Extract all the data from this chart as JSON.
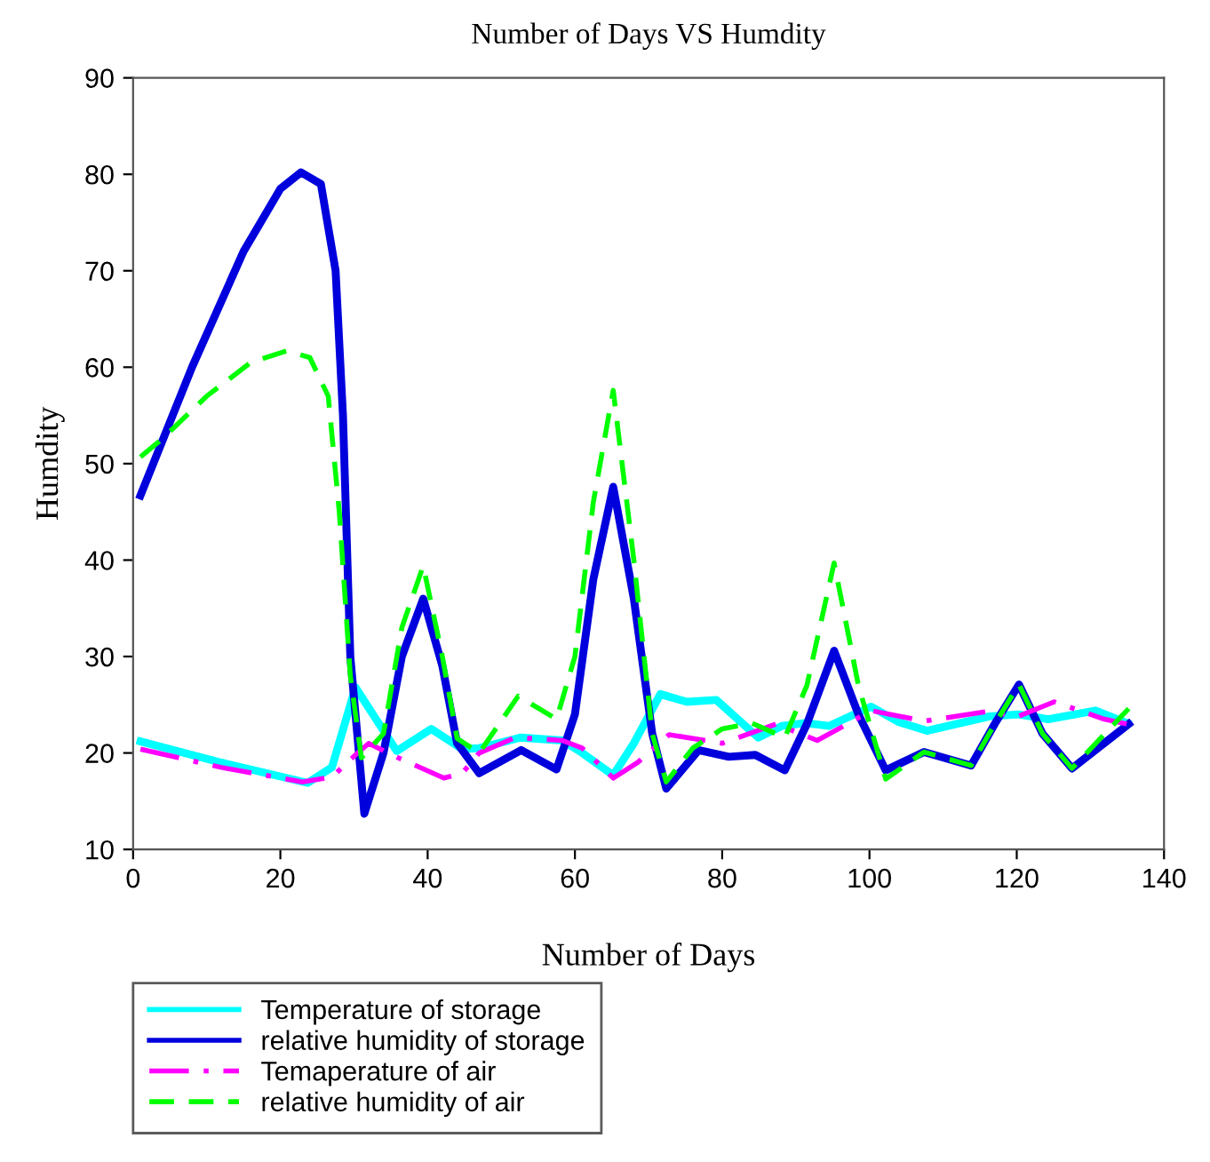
{
  "chart_data": {
    "type": "line",
    "title": "Number of Days VS Humdity",
    "xlabel": "Number of Days",
    "ylabel": "Humdity",
    "xlim": [
      0,
      140
    ],
    "xticks": [
      0,
      20,
      40,
      60,
      80,
      100,
      120,
      140
    ],
    "ylim": [
      10,
      90
    ],
    "yticks": [
      10,
      20,
      30,
      40,
      50,
      60,
      70,
      80,
      90
    ],
    "grid": false,
    "legend": "bottom left",
    "marker": "none",
    "series": [
      {
        "name": "Temperature of storage",
        "color": "#00ffff",
        "line_style": "solid",
        "x": [
          1,
          12,
          23.7,
          27,
          30.2,
          33,
          35.8,
          40.5,
          44.7,
          47,
          52.6,
          58.3,
          61,
          65.2,
          68,
          71.6,
          75.2,
          79.2,
          84.9,
          88.1,
          91.3,
          94.5,
          100.2,
          104,
          107.8,
          116.3,
          120.2,
          124.3,
          130.7,
          135
        ],
        "values": [
          21.2,
          19,
          16.9,
          18.5,
          26.8,
          23.5,
          20.2,
          22.5,
          20.4,
          20.5,
          21.6,
          21.3,
          20,
          17.7,
          21,
          26.1,
          25.3,
          25.5,
          21.6,
          22.8,
          23.1,
          22.8,
          24.8,
          23.2,
          22.3,
          23.8,
          24,
          23.5,
          24.4,
          23.1
        ]
      },
      {
        "name": "relative humidity of storage",
        "color": "#0000dd",
        "line_style": "solid",
        "x": [
          1,
          8,
          15,
          20,
          22.8,
          25.5,
          27.5,
          28.5,
          29.5,
          31.4,
          34,
          36.5,
          39.4,
          42,
          44,
          47,
          52.7,
          57.5,
          60,
          62.5,
          65.2,
          68,
          70.5,
          72.4,
          76.8,
          80.9,
          84.5,
          88.5,
          91.5,
          95.2,
          98.5,
          102.2,
          107.4,
          113.8,
          117,
          120.3,
          123.5,
          127.5,
          135.2
        ],
        "values": [
          46.7,
          60,
          72,
          78.5,
          80.2,
          79,
          70,
          55,
          30,
          13.7,
          20,
          30,
          36,
          29,
          21,
          17.9,
          20.3,
          18.3,
          24,
          38,
          47.6,
          36,
          22,
          16.3,
          20.3,
          19.6,
          19.8,
          18.2,
          23,
          30.6,
          24,
          18.2,
          20.1,
          18.7,
          23,
          27.1,
          22,
          18.4,
          23
        ]
      },
      {
        "name": "Temaperature of air",
        "color": "#ff00ff",
        "line_style": "dashdot",
        "x": [
          1,
          12,
          23,
          27,
          30.2,
          32,
          36,
          42.2,
          44.7,
          47,
          51.9,
          58.3,
          61,
          65.2,
          68.5,
          72.8,
          80,
          87.3,
          92.9,
          97,
          100.2,
          107.4,
          116,
          120.2,
          125.1,
          131.9,
          135
        ],
        "values": [
          20.4,
          18.5,
          17,
          17.5,
          19.8,
          21,
          19.5,
          17.4,
          17.9,
          20,
          21.6,
          21.3,
          20.5,
          17.4,
          19,
          21.9,
          21,
          23,
          21.3,
          23,
          24.4,
          23.3,
          24.3,
          23.8,
          25.3,
          23.5,
          23
        ]
      },
      {
        "name": "relative humidity of air",
        "color": "#00ff00",
        "line_style": "dashed",
        "x": [
          1,
          4,
          10,
          16,
          20.9,
          24,
          26.5,
          28,
          29.5,
          31,
          34,
          36.5,
          39.4,
          42,
          44,
          47,
          52.3,
          57.5,
          60,
          62.5,
          65.2,
          68,
          70.5,
          72.4,
          76,
          80,
          84,
          88.5,
          91.5,
          95.2,
          98.5,
          102.2,
          107.4,
          113.8,
          117,
          120.3,
          123.5,
          127.5,
          135.2
        ],
        "values": [
          50.7,
          52.6,
          57,
          60.5,
          61.7,
          61,
          57,
          45,
          28,
          19.5,
          22,
          33,
          39.4,
          30,
          21.5,
          20,
          25.9,
          23.5,
          30,
          46,
          57.6,
          40,
          22,
          17,
          20.5,
          22.5,
          23.1,
          21.6,
          27,
          39.7,
          27,
          17.3,
          20.1,
          18.7,
          23,
          27.1,
          22,
          18.4,
          24.6
        ]
      }
    ]
  }
}
